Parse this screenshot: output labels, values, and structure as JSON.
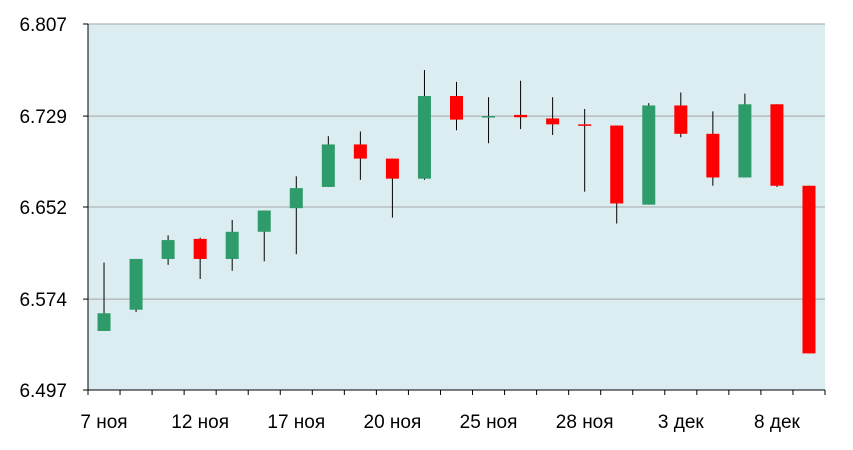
{
  "chart_data": {
    "type": "candlestick",
    "title": "",
    "xlabel": "",
    "ylabel": "",
    "ylim": [
      6.497,
      6.807
    ],
    "y_ticks": [
      "6.807",
      "6.729",
      "6.652",
      "6.574",
      "6.497"
    ],
    "x_tick_labels": [
      "7 ноя",
      "12 ноя",
      "17 ноя",
      "20 ноя",
      "25 ноя",
      "28 ноя",
      "3 дек",
      "8 дек"
    ],
    "grid": true,
    "colors": {
      "plot_background": "#dcedf2",
      "up": "#2e9b6a",
      "down": "#ff0000",
      "grid": "#a6a6a6",
      "axis": "#000000"
    },
    "candles": [
      {
        "open": 6.547,
        "close": 6.562,
        "high": 6.605,
        "low": 6.547
      },
      {
        "open": 6.565,
        "close": 6.608,
        "high": 6.608,
        "low": 6.563
      },
      {
        "open": 6.608,
        "close": 6.624,
        "high": 6.628,
        "low": 6.603
      },
      {
        "open": 6.625,
        "close": 6.608,
        "high": 6.626,
        "low": 6.591
      },
      {
        "open": 6.608,
        "close": 6.631,
        "high": 6.641,
        "low": 6.598
      },
      {
        "open": 6.631,
        "close": 6.649,
        "high": 6.649,
        "low": 6.606
      },
      {
        "open": 6.651,
        "close": 6.668,
        "high": 6.678,
        "low": 6.612
      },
      {
        "open": 6.669,
        "close": 6.705,
        "high": 6.712,
        "low": 6.669
      },
      {
        "open": 6.705,
        "close": 6.693,
        "high": 6.716,
        "low": 6.675
      },
      {
        "open": 6.693,
        "close": 6.676,
        "high": 6.693,
        "low": 6.643
      },
      {
        "open": 6.676,
        "close": 6.746,
        "high": 6.768,
        "low": 6.675
      },
      {
        "open": 6.746,
        "close": 6.726,
        "high": 6.758,
        "low": 6.717
      },
      {
        "open": 6.729,
        "close": 6.729,
        "high": 6.745,
        "low": 6.706
      },
      {
        "open": 6.73,
        "close": 6.728,
        "high": 6.759,
        "low": 6.718
      },
      {
        "open": 6.727,
        "close": 6.722,
        "high": 6.745,
        "low": 6.713
      },
      {
        "open": 6.722,
        "close": 6.721,
        "high": 6.735,
        "low": 6.665
      },
      {
        "open": 6.721,
        "close": 6.655,
        "high": 6.721,
        "low": 6.638
      },
      {
        "open": 6.654,
        "close": 6.738,
        "high": 6.74,
        "low": 6.654
      },
      {
        "open": 6.738,
        "close": 6.714,
        "high": 6.749,
        "low": 6.711
      },
      {
        "open": 6.714,
        "close": 6.677,
        "high": 6.733,
        "low": 6.67
      },
      {
        "open": 6.677,
        "close": 6.739,
        "high": 6.748,
        "low": 6.677
      },
      {
        "open": 6.739,
        "close": 6.67,
        "high": 6.739,
        "low": 6.669
      },
      {
        "open": 6.67,
        "close": 6.528,
        "high": 6.67,
        "low": 6.528
      }
    ]
  }
}
